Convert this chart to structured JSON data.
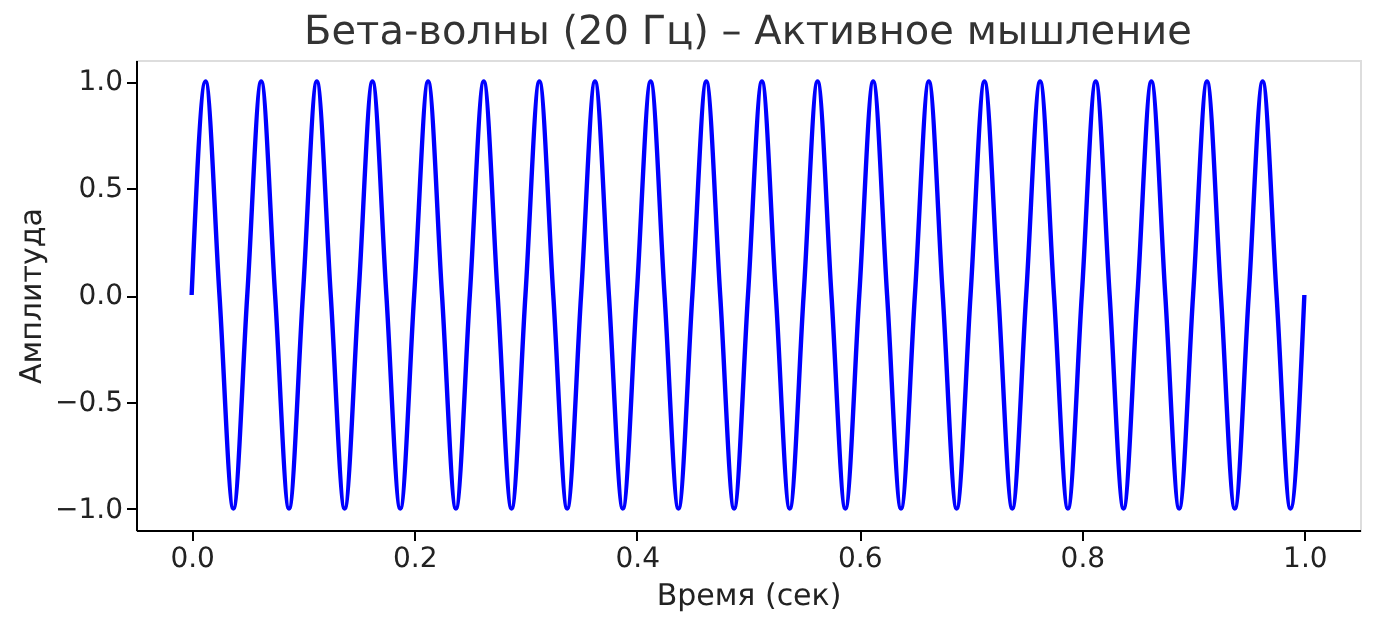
{
  "chart_data": {
    "type": "line",
    "title": "Бета-волны (20 Гц) – Активное мышление",
    "xlabel": "Время (сек)",
    "ylabel": "Амплитуда",
    "x": [
      0,
      0.0125,
      0.025,
      0.0375,
      0.05,
      0.0625,
      0.075,
      0.0875,
      0.1,
      0.1125,
      0.125,
      0.1375,
      0.15,
      0.1625,
      0.175,
      0.1875,
      0.2,
      0.2125,
      0.225,
      0.2375,
      0.25,
      0.2625,
      0.275,
      0.2875,
      0.3,
      0.3125,
      0.325,
      0.3375,
      0.35,
      0.3625,
      0.375,
      0.3875,
      0.4,
      0.4125,
      0.425,
      0.4375,
      0.45,
      0.4625,
      0.475,
      0.4875,
      0.5,
      0.5125,
      0.525,
      0.5375,
      0.55,
      0.5625,
      0.575,
      0.5875,
      0.6,
      0.6125,
      0.625,
      0.6375,
      0.65,
      0.6625,
      0.675,
      0.6875,
      0.7,
      0.7125,
      0.725,
      0.7375,
      0.75,
      0.7625,
      0.775,
      0.7875,
      0.8,
      0.8125,
      0.825,
      0.8375,
      0.85,
      0.8625,
      0.875,
      0.8875,
      0.9,
      0.9125,
      0.925,
      0.9375,
      0.95,
      0.9625,
      0.975,
      0.9875,
      1.0
    ],
    "series": [
      {
        "color": "#0000ff",
        "values": [
          0,
          1,
          0,
          -1,
          0,
          1,
          0,
          -1,
          0,
          1,
          0,
          -1,
          0,
          1,
          0,
          -1,
          0,
          1,
          0,
          -1,
          0,
          1,
          0,
          -1,
          0,
          1,
          0,
          -1,
          0,
          1,
          0,
          -1,
          0,
          1,
          0,
          -1,
          0,
          1,
          0,
          -1,
          0,
          1,
          0,
          -1,
          0,
          1,
          0,
          -1,
          0,
          1,
          0,
          -1,
          0,
          1,
          0,
          -1,
          0,
          1,
          0,
          -1,
          0,
          1,
          0,
          -1,
          0,
          1,
          0,
          -1,
          0,
          1,
          0,
          -1,
          0,
          1,
          0,
          -1,
          0,
          1,
          0,
          -1,
          0
        ]
      }
    ],
    "xlim": [
      -0.05,
      1.05
    ],
    "xticks": [
      {
        "value": 0,
        "label": "0.0"
      },
      {
        "value": 0.2,
        "label": "0.2"
      },
      {
        "value": 0.4,
        "label": "0.4"
      },
      {
        "value": 0.6,
        "label": "0.6"
      },
      {
        "value": 0.8,
        "label": "0.8"
      },
      {
        "value": 1.0,
        "label": "1.0"
      }
    ],
    "ylim": [
      -1.1,
      1.1
    ],
    "yticks": [
      {
        "value": -1,
        "label": "−1.0"
      },
      {
        "value": -0.5,
        "label": "−0.5"
      },
      {
        "value": 0,
        "label": "0.0"
      },
      {
        "value": 0.5,
        "label": "0.5"
      },
      {
        "value": 1,
        "label": "1.0"
      }
    ],
    "grid": false,
    "marker": "none",
    "line_style": "solid"
  }
}
